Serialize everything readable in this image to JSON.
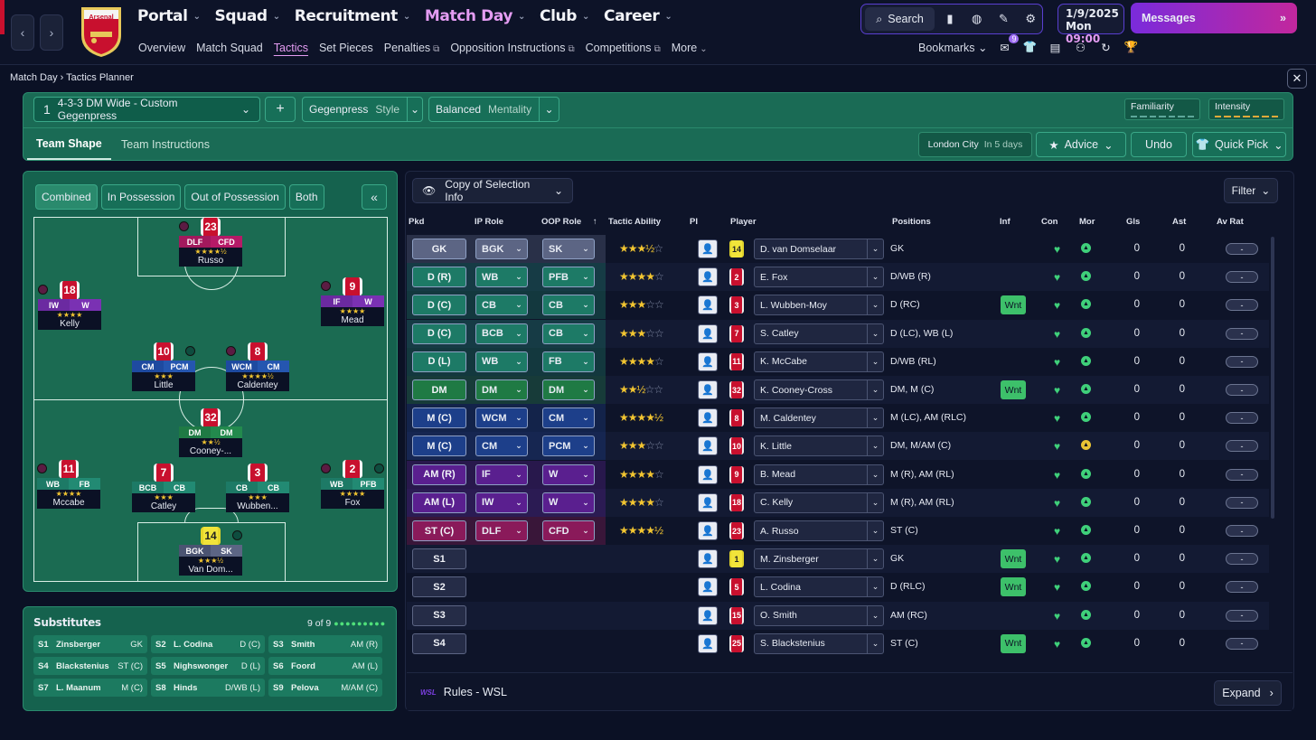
{
  "topnav": {
    "club_badge_text": "Arsenal",
    "main": [
      {
        "label": "Portal",
        "active": false
      },
      {
        "label": "Squad",
        "active": false
      },
      {
        "label": "Recruitment",
        "active": false
      },
      {
        "label": "Match Day",
        "active": true
      },
      {
        "label": "Club",
        "active": false
      },
      {
        "label": "Career",
        "active": false
      }
    ],
    "sub": [
      "Overview",
      "Match Squad",
      "Tactics",
      "Set Pieces",
      "Penalties",
      "Opposition Instructions",
      "Competitions",
      "More"
    ],
    "search_label": "Search",
    "date": "1/9/2025",
    "day": "Mon",
    "time": "09:00",
    "messages_label": "Messages",
    "bookmarks_label": "Bookmarks",
    "notif_count": "9"
  },
  "breadcrumb": {
    "parent": "Match Day",
    "current": "Tactics Planner"
  },
  "header": {
    "tactic_slot": "1",
    "tactic_name": "4-3-3 DM Wide - Custom Gegenpress",
    "style_value": "Gegenpress",
    "style_label": "Style",
    "mentality_value": "Balanced",
    "mentality_label": "Mentality",
    "familiarity_label": "Familiarity",
    "intensity_label": "Intensity",
    "tabs": [
      "Team Shape",
      "Team Instructions"
    ],
    "next_match": "London City",
    "next_match_when": "In 5 days",
    "advice_label": "Advice",
    "undo_label": "Undo",
    "quickpick_label": "Quick Pick"
  },
  "pitch": {
    "view_tabs": [
      "Combined",
      "In Possession",
      "Out of Possession",
      "Both"
    ],
    "players": [
      {
        "no": "23",
        "r1": "DLF",
        "r2": "CFD",
        "name": "Russo",
        "stars": "★★★★½"
      },
      {
        "no": "18",
        "r1": "IW",
        "r2": "W",
        "name": "Kelly",
        "stars": "★★★★"
      },
      {
        "no": "9",
        "r1": "IF",
        "r2": "W",
        "name": "Mead",
        "stars": "★★★★"
      },
      {
        "no": "10",
        "r1": "CM",
        "r2": "PCM",
        "name": "Little",
        "stars": "★★★"
      },
      {
        "no": "8",
        "r1": "WCM",
        "r2": "CM",
        "name": "Caldentey",
        "stars": "★★★★½"
      },
      {
        "no": "32",
        "r1": "DM",
        "r2": "DM",
        "name": "Cooney-...",
        "stars": "★★½"
      },
      {
        "no": "11",
        "r1": "WB",
        "r2": "FB",
        "name": "Mccabe",
        "stars": "★★★★"
      },
      {
        "no": "7",
        "r1": "BCB",
        "r2": "CB",
        "name": "Catley",
        "stars": "★★★"
      },
      {
        "no": "3",
        "r1": "CB",
        "r2": "CB",
        "name": "Wubben...",
        "stars": "★★★"
      },
      {
        "no": "2",
        "r1": "WB",
        "r2": "PFB",
        "name": "Fox",
        "stars": "★★★★"
      },
      {
        "no": "14",
        "r1": "BGK",
        "r2": "SK",
        "name": "Van Dom...",
        "stars": "★★★½"
      }
    ]
  },
  "subs": {
    "title": "Substitutes",
    "count": "9 of 9",
    "dots": "●●●●●●●●●",
    "items": [
      {
        "slot": "S1",
        "name": "Zinsberger",
        "pos": "GK"
      },
      {
        "slot": "S2",
        "name": "L. Codina",
        "pos": "D (C)"
      },
      {
        "slot": "S3",
        "name": "Smith",
        "pos": "AM (R)"
      },
      {
        "slot": "S4",
        "name": "Blackstenius",
        "pos": "ST (C)"
      },
      {
        "slot": "S5",
        "name": "Nighswonger",
        "pos": "D (L)"
      },
      {
        "slot": "S6",
        "name": "Foord",
        "pos": "AM (L)"
      },
      {
        "slot": "S7",
        "name": "L. Maanum",
        "pos": "M (C)"
      },
      {
        "slot": "S8",
        "name": "Hinds",
        "pos": "D/WB (L)"
      },
      {
        "slot": "S9",
        "name": "Pelova",
        "pos": "M/AM (C)"
      }
    ]
  },
  "table": {
    "copy_label": "Copy of Selection Info",
    "filter_label": "Filter",
    "headers": {
      "pkd": "Pkd",
      "ip": "IP Role",
      "oop": "OOP Role",
      "ta": "Tactic Ability",
      "pi": "PI",
      "player": "Player",
      "positions": "Positions",
      "inf": "Inf",
      "con": "Con",
      "mor": "Mor",
      "gls": "Gls",
      "ast": "Ast",
      "avrat": "Av Rat"
    },
    "rows": [
      {
        "pkd": "GK",
        "ip": "BGK",
        "oop": "SK",
        "stars": "★★★",
        "half": "½",
        "empty": "☆",
        "no": "14",
        "player": "D. van Domselaar",
        "pos": "GK",
        "inf": "",
        "gls": "0",
        "ast": "0",
        "rat": "-"
      },
      {
        "pkd": "D (R)",
        "ip": "WB",
        "oop": "PFB",
        "stars": "★★★★",
        "half": "",
        "empty": "☆",
        "no": "2",
        "player": "E. Fox",
        "pos": "D/WB (R)",
        "inf": "",
        "gls": "0",
        "ast": "0",
        "rat": "-"
      },
      {
        "pkd": "D (C)",
        "ip": "CB",
        "oop": "CB",
        "stars": "★★★",
        "half": "",
        "empty": "☆☆",
        "no": "3",
        "player": "L. Wubben-Moy",
        "pos": "D (RC)",
        "inf": "Wnt",
        "gls": "0",
        "ast": "0",
        "rat": "-"
      },
      {
        "pkd": "D (C)",
        "ip": "BCB",
        "oop": "CB",
        "stars": "★★★",
        "half": "",
        "empty": "☆☆",
        "no": "7",
        "player": "S. Catley",
        "pos": "D (LC), WB (L)",
        "inf": "",
        "gls": "0",
        "ast": "0",
        "rat": "-"
      },
      {
        "pkd": "D (L)",
        "ip": "WB",
        "oop": "FB",
        "stars": "★★★★",
        "half": "",
        "empty": "☆",
        "no": "11",
        "player": "K. McCabe",
        "pos": "D/WB (RL)",
        "inf": "",
        "gls": "0",
        "ast": "0",
        "rat": "-"
      },
      {
        "pkd": "DM",
        "ip": "DM",
        "oop": "DM",
        "stars": "★★",
        "half": "½",
        "empty": "☆☆",
        "no": "32",
        "player": "K. Cooney-Cross",
        "pos": "DM, M (C)",
        "inf": "Wnt",
        "gls": "0",
        "ast": "0",
        "rat": "-"
      },
      {
        "pkd": "M (C)",
        "ip": "WCM",
        "oop": "CM",
        "stars": "★★★★",
        "half": "½",
        "empty": "",
        "no": "8",
        "player": "M. Caldentey",
        "pos": "M (LC), AM (RLC)",
        "inf": "",
        "gls": "0",
        "ast": "0",
        "rat": "-"
      },
      {
        "pkd": "M (C)",
        "ip": "CM",
        "oop": "PCM",
        "stars": "★★★",
        "half": "",
        "empty": "☆☆",
        "no": "10",
        "player": "K. Little",
        "pos": "DM, M/AM (C)",
        "inf": "",
        "gls": "0",
        "ast": "0",
        "rat": "-"
      },
      {
        "pkd": "AM (R)",
        "ip": "IF",
        "oop": "W",
        "stars": "★★★★",
        "half": "",
        "empty": "☆",
        "no": "9",
        "player": "B. Mead",
        "pos": "M (R), AM (RL)",
        "inf": "",
        "gls": "0",
        "ast": "0",
        "rat": "-"
      },
      {
        "pkd": "AM (L)",
        "ip": "IW",
        "oop": "W",
        "stars": "★★★★",
        "half": "",
        "empty": "☆",
        "no": "18",
        "player": "C. Kelly",
        "pos": "M (R), AM (RL)",
        "inf": "",
        "gls": "0",
        "ast": "0",
        "rat": "-"
      },
      {
        "pkd": "ST (C)",
        "ip": "DLF",
        "oop": "CFD",
        "stars": "★★★★",
        "half": "½",
        "empty": "",
        "no": "23",
        "player": "A. Russo",
        "pos": "ST (C)",
        "inf": "",
        "gls": "0",
        "ast": "0",
        "rat": "-"
      },
      {
        "pkd": "S1",
        "ip": "",
        "oop": "",
        "stars": "",
        "half": "",
        "empty": "",
        "no": "1",
        "player": "M. Zinsberger",
        "pos": "GK",
        "inf": "Wnt",
        "gls": "0",
        "ast": "0",
        "rat": "-"
      },
      {
        "pkd": "S2",
        "ip": "",
        "oop": "",
        "stars": "",
        "half": "",
        "empty": "",
        "no": "5",
        "player": "L. Codina",
        "pos": "D (RLC)",
        "inf": "Wnt",
        "gls": "0",
        "ast": "0",
        "rat": "-"
      },
      {
        "pkd": "S3",
        "ip": "",
        "oop": "",
        "stars": "",
        "half": "",
        "empty": "",
        "no": "15",
        "player": "O. Smith",
        "pos": "AM (RC)",
        "inf": "",
        "gls": "0",
        "ast": "0",
        "rat": "-"
      },
      {
        "pkd": "S4",
        "ip": "",
        "oop": "",
        "stars": "",
        "half": "",
        "empty": "",
        "no": "25",
        "player": "S. Blackstenius",
        "pos": "ST (C)",
        "inf": "Wnt",
        "gls": "0",
        "ast": "0",
        "rat": "-"
      }
    ],
    "rules_label": "Rules - WSL",
    "expand_label": "Expand"
  },
  "colors": {
    "accent": "#e49cf2",
    "panel_green": "#1a6b55",
    "gk": "#5c6584",
    "def": "#1d7a66",
    "dm": "#1f7a44",
    "mid": "#1d3f8a",
    "am": "#5a1f8f",
    "st": "#8a1a5a"
  }
}
